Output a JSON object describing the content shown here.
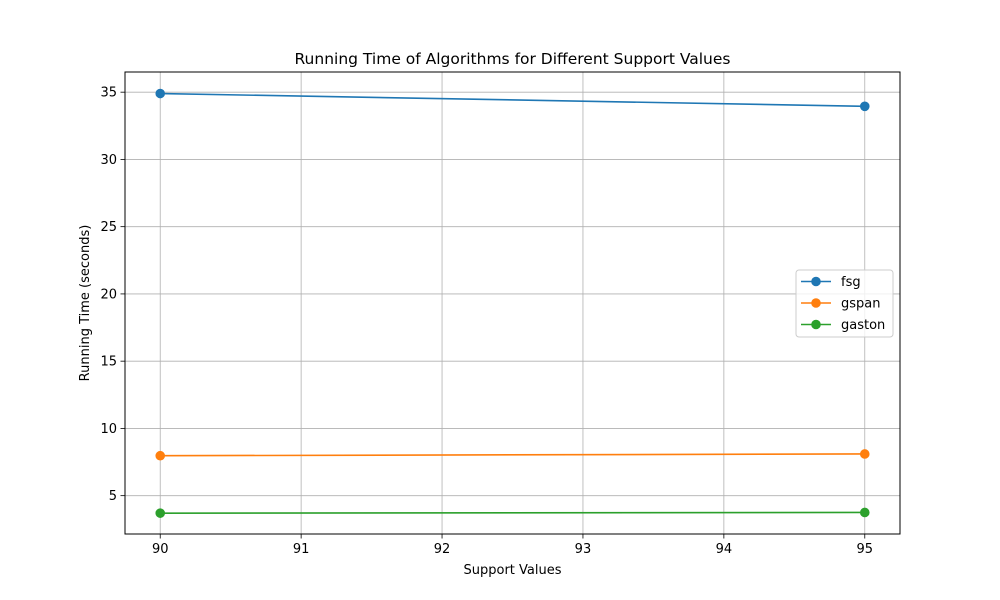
{
  "chart_data": {
    "type": "line",
    "title": "Running Time of Algorithms for Different Support Values",
    "xlabel": "Support Values",
    "ylabel": "Running Time (seconds)",
    "x": [
      90,
      95
    ],
    "x_ticks": [
      90,
      91,
      92,
      93,
      94,
      95
    ],
    "y_ticks": [
      5,
      10,
      15,
      20,
      25,
      30,
      35
    ],
    "xlim": [
      89.75,
      95.25
    ],
    "ylim": [
      2.15,
      36.5
    ],
    "grid": true,
    "legend_position": "center-right",
    "markers": "circle",
    "series": [
      {
        "name": "fsg",
        "color": "#1f77b4",
        "values": [
          34.9,
          33.95
        ]
      },
      {
        "name": "gspan",
        "color": "#ff7f0e",
        "values": [
          7.97,
          8.1
        ]
      },
      {
        "name": "gaston",
        "color": "#2ca02c",
        "values": [
          3.7,
          3.75
        ]
      }
    ]
  }
}
